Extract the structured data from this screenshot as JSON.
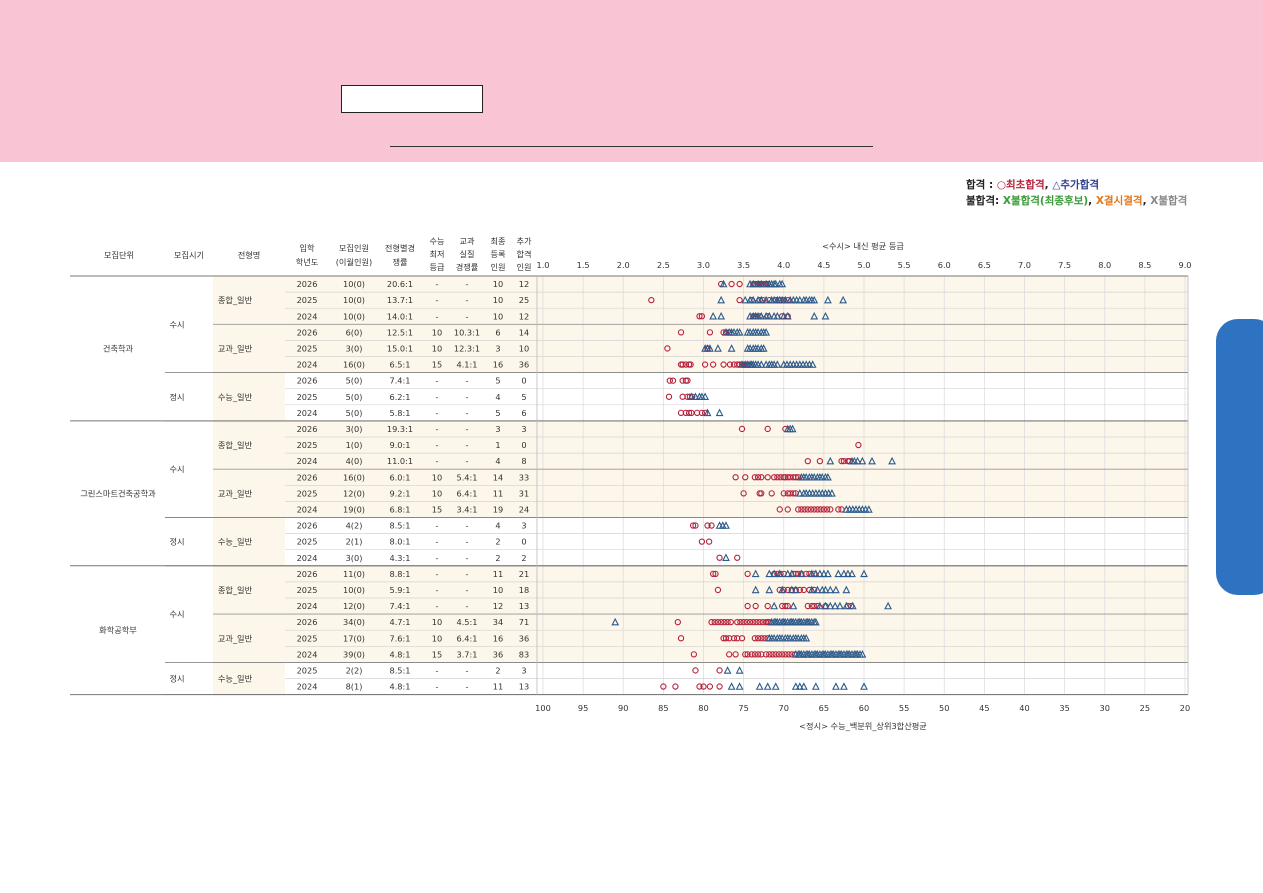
{
  "legend": {
    "pass_label": "합격",
    "pass_sep": " : ",
    "first_pass": "○최초합격",
    "comma1": ", ",
    "added_pass": "△추가합격",
    "fail_label": "불합격",
    "fail_sep": ": ",
    "fail_final": "X불합격(최종후보)",
    "comma2": ", ",
    "fail_absent": "X결시결격",
    "comma3": ", ",
    "fail_plain": "X불합격"
  },
  "colors": {
    "first_pass": "#b5203a",
    "added_pass": "#2b5a8c",
    "fail_final": "#3a9a3a",
    "fail_absent": "#e07820",
    "fail_plain": "#888888",
    "highlight": "#fdf6ea",
    "banner": "#f9c4d4",
    "side_tab": "#2d73c2"
  },
  "table": {
    "headers": {
      "unit": "모집단위",
      "period": "모집시기",
      "type": "전형명",
      "year_1": "입학",
      "year_2": "학년도",
      "quota_1": "모집인원",
      "quota_2": "(이월인원)",
      "ratio_1": "전형별경",
      "ratio_2": "쟁률",
      "min_1": "수능",
      "min_2": "최저",
      "min_3": "등급",
      "real_1": "교과",
      "real_2": "실질",
      "real_3": "경쟁률",
      "reg_1": "최종",
      "reg_2": "등록",
      "reg_3": "인원",
      "add_1": "추가",
      "add_2": "합격",
      "add_3": "인원"
    },
    "units": [
      "건축학과",
      "그린스마트건축공학과",
      "화학공학부"
    ],
    "periods": [
      "수시",
      "정시",
      "수시",
      "정시",
      "수시",
      "정시"
    ],
    "types": [
      "종합_일반",
      "교과_일반",
      "수능_일반",
      "종합_일반",
      "교과_일반",
      "수능_일반",
      "종합_일반",
      "교과_일반",
      "수능_일반"
    ],
    "rows": [
      [
        "2026",
        "10(0)",
        "20.6:1",
        "-",
        "-",
        "10",
        "12"
      ],
      [
        "2025",
        "10(0)",
        "13.7:1",
        "-",
        "-",
        "10",
        "25"
      ],
      [
        "2024",
        "10(0)",
        "14.0:1",
        "-",
        "-",
        "10",
        "12"
      ],
      [
        "2026",
        "6(0)",
        "12.5:1",
        "10",
        "10.3:1",
        "6",
        "14"
      ],
      [
        "2025",
        "3(0)",
        "15.0:1",
        "10",
        "12.3:1",
        "3",
        "10"
      ],
      [
        "2024",
        "16(0)",
        "6.5:1",
        "15",
        "4.1:1",
        "16",
        "36"
      ],
      [
        "2026",
        "5(0)",
        "7.4:1",
        "-",
        "-",
        "5",
        "0"
      ],
      [
        "2025",
        "5(0)",
        "6.2:1",
        "-",
        "-",
        "4",
        "5"
      ],
      [
        "2024",
        "5(0)",
        "5.8:1",
        "-",
        "-",
        "5",
        "6"
      ],
      [
        "2026",
        "3(0)",
        "19.3:1",
        "-",
        "-",
        "3",
        "3"
      ],
      [
        "2025",
        "1(0)",
        "9.0:1",
        "-",
        "-",
        "1",
        "0"
      ],
      [
        "2024",
        "4(0)",
        "11.0:1",
        "-",
        "-",
        "4",
        "8"
      ],
      [
        "2026",
        "16(0)",
        "6.0:1",
        "10",
        "5.4:1",
        "14",
        "33"
      ],
      [
        "2025",
        "12(0)",
        "9.2:1",
        "10",
        "6.4:1",
        "11",
        "31"
      ],
      [
        "2024",
        "19(0)",
        "6.8:1",
        "15",
        "3.4:1",
        "19",
        "24"
      ],
      [
        "2026",
        "4(2)",
        "8.5:1",
        "-",
        "-",
        "4",
        "3"
      ],
      [
        "2025",
        "2(1)",
        "8.0:1",
        "-",
        "-",
        "2",
        "0"
      ],
      [
        "2024",
        "3(0)",
        "4.3:1",
        "-",
        "-",
        "2",
        "2"
      ],
      [
        "2026",
        "11(0)",
        "8.8:1",
        "-",
        "-",
        "11",
        "21"
      ],
      [
        "2025",
        "10(0)",
        "5.9:1",
        "-",
        "-",
        "10",
        "18"
      ],
      [
        "2024",
        "12(0)",
        "7.4:1",
        "-",
        "-",
        "12",
        "13"
      ],
      [
        "2026",
        "34(0)",
        "4.7:1",
        "10",
        "4.5:1",
        "34",
        "71"
      ],
      [
        "2025",
        "17(0)",
        "7.6:1",
        "10",
        "6.4:1",
        "16",
        "36"
      ],
      [
        "2024",
        "39(0)",
        "4.8:1",
        "15",
        "3.7:1",
        "36",
        "83"
      ],
      [
        "2025",
        "2(2)",
        "8.5:1",
        "-",
        "-",
        "2",
        "3"
      ],
      [
        "2024",
        "8(1)",
        "4.8:1",
        "-",
        "-",
        "11",
        "13"
      ]
    ]
  },
  "chart_data": {
    "type": "scatter",
    "title": "<수시> 내신 평균 등급",
    "xlabel_bottom": "<정시> 수능_백분위_상위3합산평균",
    "x_top_ticks": [
      "1.0",
      "1.5",
      "2.0",
      "2.5",
      "3.0",
      "3.5",
      "4.0",
      "4.5",
      "5.0",
      "5.5",
      "6.0",
      "6.5",
      "7.0",
      "7.5",
      "8.0",
      "8.5",
      "9.0"
    ],
    "x_bottom_ticks": [
      "100",
      "95",
      "90",
      "85",
      "80",
      "75",
      "70",
      "65",
      "60",
      "55",
      "50",
      "45",
      "40",
      "35",
      "30",
      "25",
      "20"
    ],
    "xlim_top": [
      1.0,
      9.0
    ],
    "xlim_bottom": [
      100,
      20
    ],
    "grid": true,
    "series": [
      {
        "name": "○최초합격",
        "marker": "circle",
        "rows": [
          [
            3.22,
            3.35,
            3.45,
            3.62,
            3.65,
            3.68,
            3.7,
            3.72,
            3.75,
            3.78,
            3.8
          ],
          [
            2.35,
            3.45,
            3.6,
            3.7,
            3.74,
            3.82,
            3.9,
            3.95,
            4.0,
            4.05
          ],
          [
            2.95,
            2.98,
            3.62,
            3.65,
            3.7,
            3.8,
            3.98,
            4.05
          ],
          [
            2.72,
            3.08,
            3.25,
            3.28,
            3.32
          ],
          [
            2.55,
            3.05
          ],
          [
            2.72,
            2.74,
            2.78,
            2.82,
            2.84,
            3.02,
            3.12,
            3.25,
            3.33,
            3.38,
            3.42,
            3.45,
            3.48,
            3.5,
            3.52,
            3.55
          ],
          [
            2.58,
            2.62,
            2.74,
            2.78,
            2.8
          ],
          [
            2.57,
            2.74,
            2.8,
            2.83,
            2.86
          ],
          [
            2.72,
            2.78,
            2.82,
            2.85,
            2.92,
            2.98,
            3.02
          ],
          [
            3.48,
            3.8,
            4.02
          ],
          [
            4.93
          ],
          [
            4.3,
            4.45,
            4.72,
            4.75,
            4.8,
            4.82
          ],
          [
            3.4,
            3.52,
            3.64,
            3.68,
            3.72,
            3.8,
            3.88,
            3.92,
            3.96,
            4.0,
            4.02,
            4.05,
            4.08,
            4.12,
            4.15,
            4.18
          ],
          [
            3.5,
            3.7,
            3.72,
            3.85,
            4.0,
            4.05,
            4.08,
            4.12,
            4.15
          ],
          [
            3.95,
            4.05,
            4.18,
            4.22,
            4.26,
            4.3,
            4.34,
            4.38,
            4.42,
            4.46,
            4.5,
            4.54,
            4.58,
            4.68,
            4.72
          ],
          [
            2.87,
            2.9,
            3.05,
            3.1
          ],
          [
            2.98,
            3.07
          ],
          [
            3.2,
            3.42
          ],
          [
            3.12,
            3.15,
            3.55,
            3.88,
            3.92,
            3.96,
            4.0,
            4.12,
            4.15,
            4.18,
            4.22,
            4.28,
            4.32,
            4.38
          ],
          [
            3.18,
            3.95,
            4.0,
            4.05,
            4.1,
            4.15,
            4.2,
            4.25,
            4.32,
            4.38
          ],
          [
            3.55,
            3.65,
            3.8,
            3.98,
            4.02,
            4.05,
            4.3,
            4.35,
            4.38,
            4.42,
            4.52,
            4.8,
            4.84
          ],
          [
            2.68,
            3.1,
            3.14,
            3.18,
            3.22,
            3.26,
            3.3,
            3.34,
            3.42,
            3.46,
            3.5,
            3.54,
            3.58,
            3.62,
            3.66,
            3.7,
            3.74,
            3.78,
            3.8,
            3.82
          ],
          [
            2.72,
            3.25,
            3.28,
            3.32,
            3.38,
            3.42,
            3.48,
            3.64,
            3.68,
            3.72,
            3.76,
            3.8
          ],
          [
            2.88,
            3.32,
            3.4,
            3.52,
            3.55,
            3.6,
            3.64,
            3.68,
            3.72,
            3.78,
            3.82,
            3.86,
            3.9,
            3.94,
            3.98,
            4.02,
            4.06,
            4.1,
            4.14
          ],
          [
            81.0,
            78.0
          ],
          [
            85.0,
            83.5,
            80.5,
            80.0,
            79.2,
            78.0
          ]
        ]
      },
      {
        "name": "△추가합격",
        "marker": "triangle",
        "rows": [
          [
            3.25,
            3.58,
            3.62,
            3.68,
            3.72,
            3.78,
            3.82,
            3.85,
            3.88,
            3.9,
            3.95,
            3.98
          ],
          [
            3.22,
            3.52,
            3.58,
            3.62,
            3.68,
            3.72,
            3.78,
            3.85,
            3.88,
            3.92,
            3.95,
            3.98,
            4.02,
            4.08,
            4.12,
            4.16,
            4.2,
            4.25,
            4.28,
            4.32,
            4.35,
            4.38,
            4.55,
            4.74
          ],
          [
            3.12,
            3.22,
            3.58,
            3.62,
            3.65,
            3.68,
            3.72,
            3.78,
            3.82,
            3.88,
            3.92,
            4.0,
            4.05,
            4.38,
            4.52
          ],
          [
            3.28,
            3.32,
            3.35,
            3.38,
            3.42,
            3.45,
            3.55,
            3.58,
            3.62,
            3.65,
            3.68,
            3.72,
            3.75,
            3.78
          ],
          [
            3.02,
            3.05,
            3.08,
            3.18,
            3.35,
            3.55,
            3.58,
            3.62,
            3.65,
            3.68,
            3.72,
            3.75
          ],
          [
            3.48,
            3.52,
            3.55,
            3.58,
            3.6,
            3.62,
            3.65,
            3.68,
            3.72,
            3.78,
            3.82,
            3.85,
            3.88,
            3.92,
            4.0,
            4.04,
            4.08,
            4.12,
            4.16,
            4.2,
            4.24,
            4.28,
            4.32,
            4.36
          ],
          [],
          [
            2.85,
            2.9,
            2.95,
            2.98,
            3.02
          ],
          [
            3.05,
            3.2
          ],
          [
            4.05,
            4.08,
            4.11
          ],
          [],
          [
            4.58,
            4.85,
            4.88,
            4.92,
            4.98,
            5.1,
            5.35
          ],
          [
            4.22,
            4.25,
            4.28,
            4.32,
            4.35,
            4.38,
            4.42,
            4.45,
            4.48,
            4.52,
            4.55
          ],
          [
            4.2,
            4.25,
            4.28,
            4.32,
            4.36,
            4.4,
            4.44,
            4.48,
            4.52,
            4.56,
            4.6
          ],
          [
            4.78,
            4.82,
            4.86,
            4.9,
            4.94,
            4.98,
            5.02,
            5.06
          ],
          [
            3.2,
            3.24,
            3.28
          ],
          [],
          [
            3.28
          ],
          [
            3.65,
            3.82,
            3.88,
            3.95,
            4.05,
            4.1,
            4.22,
            4.35,
            4.4,
            4.45,
            4.5,
            4.55,
            4.68,
            4.75,
            4.8,
            4.85,
            5.0
          ],
          [
            3.65,
            3.82,
            3.98,
            4.1,
            4.15,
            4.35,
            4.42,
            4.48,
            4.52,
            4.58,
            4.65,
            4.78
          ],
          [
            3.88,
            4.12,
            4.45,
            4.52,
            4.58,
            4.64,
            4.7,
            4.78,
            4.86,
            5.3
          ],
          [
            1.9,
            3.85,
            3.88,
            3.9,
            3.92,
            3.95,
            3.98,
            4.0,
            4.02,
            4.05,
            4.08,
            4.1,
            4.12,
            4.15,
            4.18,
            4.2,
            4.22,
            4.25,
            4.28,
            4.3,
            4.32,
            4.35,
            4.38,
            4.4
          ],
          [
            3.82,
            3.85,
            3.88,
            3.92,
            3.95,
            3.98,
            4.02,
            4.05,
            4.08,
            4.12,
            4.15,
            4.18,
            4.22,
            4.25,
            4.28
          ],
          [
            4.15,
            4.18,
            4.2,
            4.22,
            4.25,
            4.28,
            4.3,
            4.32,
            4.35,
            4.38,
            4.4,
            4.42,
            4.45,
            4.48,
            4.5,
            4.52,
            4.55,
            4.58,
            4.6,
            4.62,
            4.65,
            4.68,
            4.7,
            4.72,
            4.75,
            4.78,
            4.8,
            4.82,
            4.85,
            4.88,
            4.9,
            4.92,
            4.95,
            4.98
          ],
          [
            77.0,
            75.5
          ],
          [
            76.5,
            75.5,
            73.0,
            72.0,
            71.0,
            68.5,
            68.0,
            67.5,
            66.0,
            63.5,
            62.5,
            60.0
          ]
        ]
      }
    ]
  }
}
